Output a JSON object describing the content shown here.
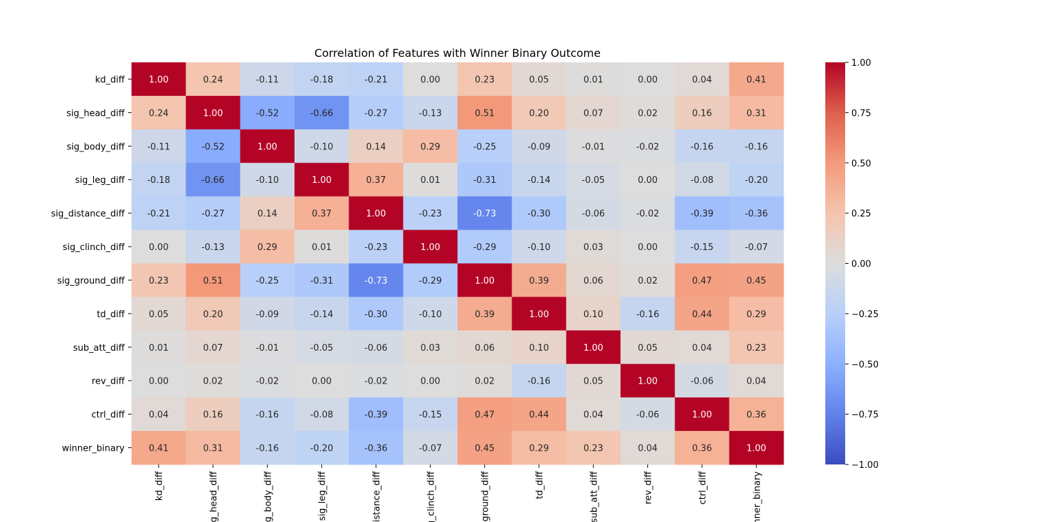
{
  "chart_data": {
    "type": "heatmap",
    "title": "Correlation of Features with Winner Binary Outcome",
    "row_labels": [
      "kd_diff",
      "sig_head_diff",
      "sig_body_diff",
      "sig_leg_diff",
      "sig_distance_diff",
      "sig_clinch_diff",
      "sig_ground_diff",
      "td_diff",
      "sub_att_diff",
      "rev_diff",
      "ctrl_diff",
      "winner_binary"
    ],
    "col_labels": [
      "kd_diff",
      "sig_head_diff",
      "sig_body_diff",
      "sig_leg_diff",
      "sig_distance_diff",
      "sig_clinch_diff",
      "sig_ground_diff",
      "td_diff",
      "sub_att_diff",
      "rev_diff",
      "ctrl_diff",
      "winner_binary"
    ],
    "values": [
      [
        1.0,
        0.24,
        -0.11,
        -0.18,
        -0.21,
        0.0,
        0.23,
        0.05,
        0.01,
        -0.0,
        0.04,
        0.41
      ],
      [
        0.24,
        1.0,
        -0.52,
        -0.66,
        -0.27,
        -0.13,
        0.51,
        0.2,
        0.07,
        0.02,
        0.16,
        0.31
      ],
      [
        -0.11,
        -0.52,
        1.0,
        -0.1,
        0.14,
        0.29,
        -0.25,
        -0.09,
        -0.01,
        -0.02,
        -0.16,
        -0.16
      ],
      [
        -0.18,
        -0.66,
        -0.1,
        1.0,
        0.37,
        0.01,
        -0.31,
        -0.14,
        -0.05,
        -0.0,
        -0.08,
        -0.2
      ],
      [
        -0.21,
        -0.27,
        0.14,
        0.37,
        1.0,
        -0.23,
        -0.73,
        -0.3,
        -0.06,
        -0.02,
        -0.39,
        -0.36
      ],
      [
        0.0,
        -0.13,
        0.29,
        0.01,
        -0.23,
        1.0,
        -0.29,
        -0.1,
        0.03,
        0.0,
        -0.15,
        -0.07
      ],
      [
        0.23,
        0.51,
        -0.25,
        -0.31,
        -0.73,
        -0.29,
        1.0,
        0.39,
        0.06,
        0.02,
        0.47,
        0.45
      ],
      [
        0.05,
        0.2,
        -0.09,
        -0.14,
        -0.3,
        -0.1,
        0.39,
        1.0,
        0.1,
        -0.16,
        0.44,
        0.29
      ],
      [
        0.01,
        0.07,
        -0.01,
        -0.05,
        -0.06,
        0.03,
        0.06,
        0.1,
        1.0,
        0.05,
        0.04,
        0.23
      ],
      [
        -0.0,
        0.02,
        -0.02,
        -0.0,
        -0.02,
        0.0,
        0.02,
        -0.16,
        0.05,
        1.0,
        -0.06,
        0.04
      ],
      [
        0.04,
        0.16,
        -0.16,
        -0.08,
        -0.39,
        -0.15,
        0.47,
        0.44,
        0.04,
        -0.06,
        1.0,
        0.36
      ],
      [
        0.41,
        0.31,
        -0.16,
        -0.2,
        -0.36,
        -0.07,
        0.45,
        0.29,
        0.23,
        0.04,
        0.36,
        1.0
      ]
    ],
    "value_format": "2 decimals",
    "colormap": "coolwarm",
    "vmin": -1.0,
    "vmax": 1.0,
    "colorbar_ticks": [
      "1.00",
      "0.75",
      "0.50",
      "0.25",
      "0.00",
      "−0.25",
      "−0.50",
      "−0.75",
      "−1.00"
    ],
    "colorbar_tick_values": [
      1.0,
      0.75,
      0.5,
      0.25,
      0.0,
      -0.25,
      -0.5,
      -0.75,
      -1.0
    ],
    "legend_placement": "right",
    "grid": false
  }
}
